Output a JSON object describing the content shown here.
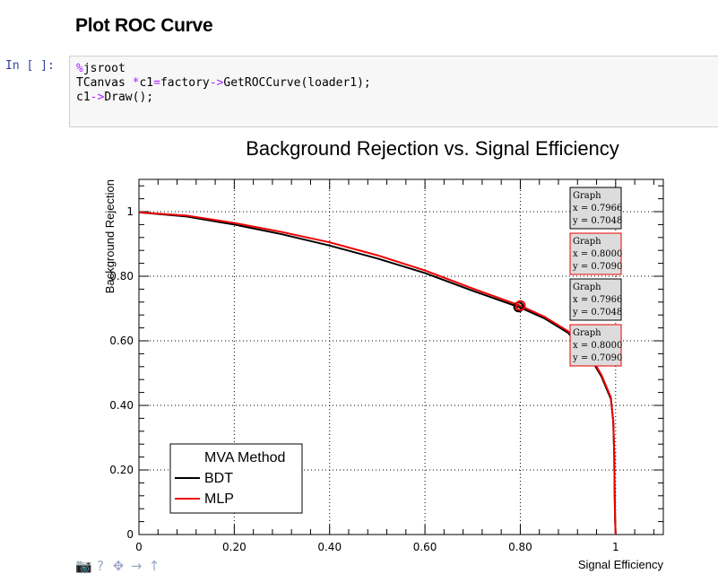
{
  "notebook": {
    "heading": "Plot ROC Curve",
    "prompt": "In [ ]:",
    "code_lines": [
      [
        {
          "t": "%",
          "c": "magic"
        },
        {
          "t": "jsroot",
          "c": ""
        }
      ],
      [
        {
          "t": "TCanvas ",
          "c": ""
        },
        {
          "t": "*",
          "c": "op"
        },
        {
          "t": "c1",
          "c": ""
        },
        {
          "t": "=",
          "c": "op"
        },
        {
          "t": "factory",
          "c": ""
        },
        {
          "t": "->",
          "c": "op"
        },
        {
          "t": "GetROCCurve(loader1);",
          "c": ""
        }
      ],
      [
        {
          "t": "c1",
          "c": ""
        },
        {
          "t": "->",
          "c": "op"
        },
        {
          "t": "Draw();",
          "c": ""
        }
      ]
    ]
  },
  "toolbar": {
    "icons": [
      {
        "name": "camera-icon",
        "glyph": "📷"
      },
      {
        "name": "help-icon",
        "glyph": "?"
      },
      {
        "name": "move-icon",
        "glyph": "✥"
      },
      {
        "name": "arrow-right-icon",
        "glyph": "→"
      },
      {
        "name": "arrow-up-icon",
        "glyph": "↑"
      }
    ]
  },
  "chart_data": {
    "type": "line",
    "title": "Background Rejection vs. Signal Efficiency",
    "xlabel": "Signal Efficiency",
    "ylabel": "Background Rejection",
    "xlim": [
      0,
      1.1
    ],
    "ylim": [
      0,
      1.1
    ],
    "x_ticks": [
      {
        "v": 0,
        "label": "0"
      },
      {
        "v": 0.2,
        "label": "0.20"
      },
      {
        "v": 0.4,
        "label": "0.40"
      },
      {
        "v": 0.6,
        "label": "0.60"
      },
      {
        "v": 0.8,
        "label": "0.80"
      },
      {
        "v": 1,
        "label": "1"
      }
    ],
    "y_ticks": [
      {
        "v": 0,
        "label": "0"
      },
      {
        "v": 0.2,
        "label": "0.20"
      },
      {
        "v": 0.4,
        "label": "0.40"
      },
      {
        "v": 0.6,
        "label": "0.60"
      },
      {
        "v": 0.8,
        "label": "0.80"
      },
      {
        "v": 1,
        "label": "1"
      }
    ],
    "grid": true,
    "legend": {
      "title": "MVA Method",
      "position": "bottom-left"
    },
    "series": [
      {
        "name": "BDT",
        "color": "#000000",
        "points": [
          [
            0,
            0.998
          ],
          [
            0.1,
            0.985
          ],
          [
            0.2,
            0.96
          ],
          [
            0.3,
            0.93
          ],
          [
            0.4,
            0.895
          ],
          [
            0.5,
            0.855
          ],
          [
            0.6,
            0.81
          ],
          [
            0.7,
            0.755
          ],
          [
            0.7966,
            0.7048
          ],
          [
            0.85,
            0.67
          ],
          [
            0.9,
            0.625
          ],
          [
            0.95,
            0.54
          ],
          [
            0.97,
            0.49
          ],
          [
            0.99,
            0.42
          ],
          [
            0.995,
            0.35
          ],
          [
            0.997,
            0.25
          ],
          [
            0.998,
            0.12
          ],
          [
            0.999,
            0.04
          ],
          [
            1.0,
            0
          ]
        ]
      },
      {
        "name": "MLP",
        "color": "#ee0000",
        "points": [
          [
            0,
            0.998
          ],
          [
            0.1,
            0.988
          ],
          [
            0.2,
            0.965
          ],
          [
            0.3,
            0.937
          ],
          [
            0.4,
            0.905
          ],
          [
            0.5,
            0.865
          ],
          [
            0.6,
            0.818
          ],
          [
            0.7,
            0.762
          ],
          [
            0.8,
            0.709
          ],
          [
            0.85,
            0.675
          ],
          [
            0.9,
            0.63
          ],
          [
            0.95,
            0.545
          ],
          [
            0.97,
            0.495
          ],
          [
            0.99,
            0.425
          ],
          [
            0.995,
            0.35
          ],
          [
            0.997,
            0.25
          ],
          [
            0.998,
            0.12
          ],
          [
            0.999,
            0.04
          ],
          [
            1.0,
            0
          ]
        ]
      }
    ],
    "markers": [
      {
        "x": 0.7966,
        "y": 0.7048,
        "color": "#000000"
      },
      {
        "x": 0.8,
        "y": 0.709,
        "color": "#ee0000"
      }
    ],
    "tooltips": [
      {
        "title": "Graph",
        "x_text": "x = 0.7966",
        "y_text": "y = 0.7048",
        "border": "#000000"
      },
      {
        "title": "Graph",
        "x_text": "x = 0.8000",
        "y_text": "y = 0.7090",
        "border": "#ee0000"
      },
      {
        "title": "Graph",
        "x_text": "x = 0.7966",
        "y_text": "y = 0.7048",
        "border": "#000000"
      },
      {
        "title": "Graph",
        "x_text": "x = 0.8000",
        "y_text": "y = 0.7090",
        "border": "#ee0000"
      }
    ]
  }
}
